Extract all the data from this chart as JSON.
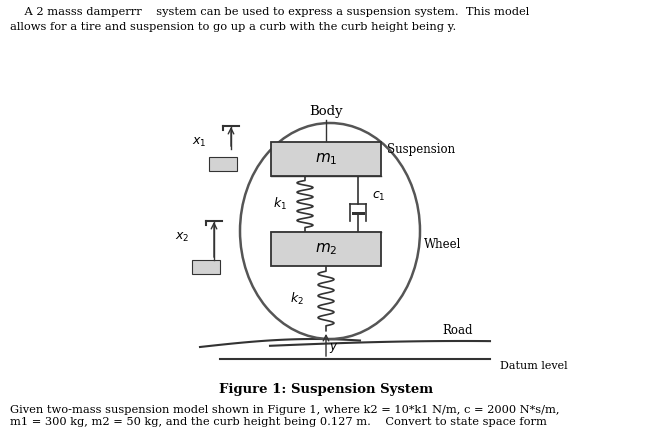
{
  "title_line1": "    A 2 masss damperrr    system can be used to express a suspension system.  This model",
  "title_line2": "allows for a tire and suspension to go up a curb with the curb height being y.",
  "figure_caption": "Figure 1: Suspension System",
  "bottom_text": "Given two-mass suspension model shown in Figure 1, where k2 = 10*k1 N/m, c = 2000 N*s/m,\nm1 = 300 kg, m2 = 50 kg, and the curb height being 0.127 m.    Convert to state space form",
  "body_label": "Body",
  "m1_label": "$m_1$",
  "m2_label": "$m_2$",
  "k1_label": "$k_1$",
  "k2_label": "$k_2$",
  "c1_label": "$c_1$",
  "x1_label": "$x_1$",
  "x2_label": "$x_2$",
  "suspension_label": "Suspension",
  "wheel_label": "Wheel",
  "road_label": "Road",
  "datum_label": "Datum level",
  "y_label": "$y$",
  "bg_color": "#ffffff",
  "box_color": "#d3d3d3",
  "box_edge_color": "#333333",
  "line_color": "#333333",
  "text_color": "#000000"
}
